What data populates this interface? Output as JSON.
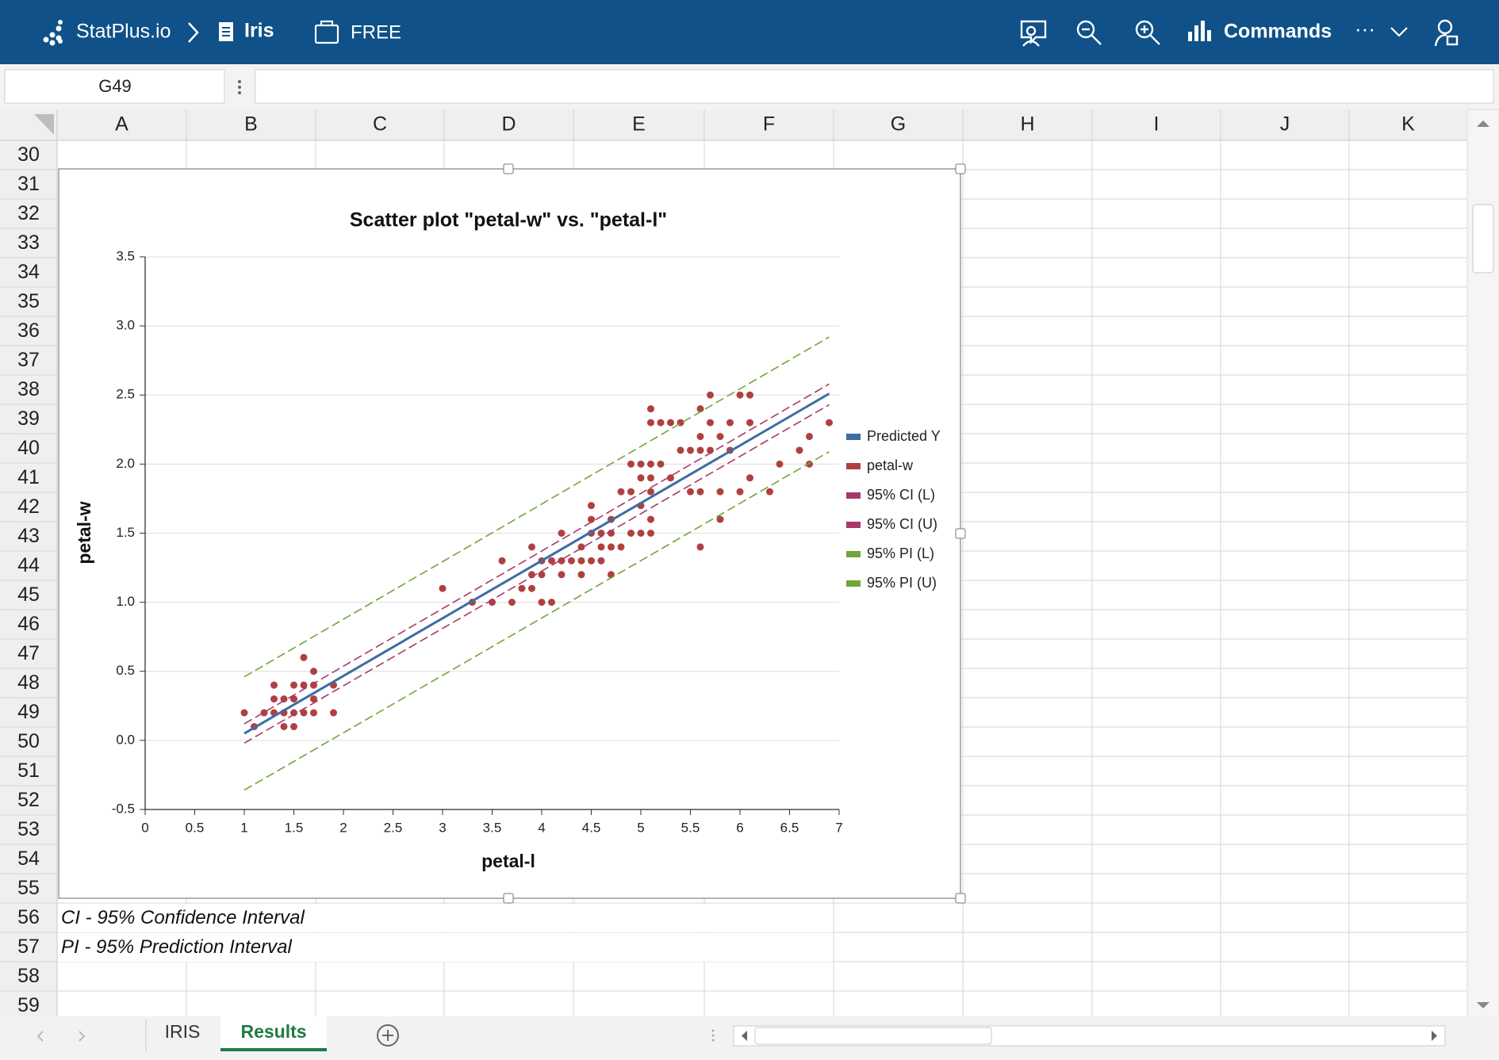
{
  "app": {
    "brand": "StatPlus.io",
    "workbook": "Iris",
    "plan": "FREE",
    "commands": "Commands",
    "more": "···",
    "name_box": "G49",
    "columns": [
      "A",
      "B",
      "C",
      "D",
      "E",
      "F",
      "G",
      "H",
      "I",
      "J",
      "K"
    ],
    "rows": [
      30,
      31,
      32,
      33,
      34,
      35,
      36,
      37,
      38,
      39,
      40,
      41,
      42,
      43,
      44,
      45,
      46,
      47,
      48,
      49,
      50,
      51,
      52,
      53,
      54,
      55,
      56,
      57,
      58,
      59
    ],
    "notes": [
      "CI - 95% Confidence Interval",
      "PI - 95% Prediction Interval"
    ],
    "tabs": [
      "IRIS",
      "Results"
    ]
  },
  "chart_data": {
    "type": "scatter",
    "title": "Scatter plot \"petal-w\" vs. \"petal-l\"",
    "x_label": "petal-l",
    "y_label": "petal-w",
    "xlim": [
      0,
      7
    ],
    "ylim": [
      -0.5,
      3.5
    ],
    "xticks": [
      0,
      0.5,
      1,
      1.5,
      2,
      2.5,
      3,
      3.5,
      4,
      4.5,
      5,
      5.5,
      6,
      6.5,
      7
    ],
    "yticks": [
      -0.5,
      {
        "value": 0,
        "label": "0.0"
      },
      0.5,
      {
        "value": 1,
        "label": "1.0"
      },
      1.5,
      {
        "value": 2,
        "label": "2.0"
      },
      2.5,
      {
        "value": 3,
        "label": "3.0"
      },
      3.5
    ],
    "grid": true,
    "legend": "right",
    "series": [
      {
        "name": "Predicted Y",
        "color": "#3e6ca6",
        "mode": "line",
        "dashed": false,
        "x": [
          1,
          6.9
        ],
        "values": [
          0.05,
          2.51
        ]
      },
      {
        "name": "petal-w",
        "color": "#b0403f",
        "mode": "markers",
        "x": [
          1,
          1.1,
          1.2,
          1.3,
          1.3,
          1.3,
          1.4,
          1.4,
          1.4,
          1.5,
          1.5,
          1.5,
          1.5,
          1.6,
          1.6,
          1.6,
          1.7,
          1.7,
          1.7,
          1.7,
          1.9,
          1.9,
          3,
          3.3,
          3.5,
          3.6,
          3.7,
          3.8,
          3.9,
          3.9,
          3.9,
          4,
          4,
          4,
          4.1,
          4.1,
          4.2,
          4.2,
          4.2,
          4.3,
          4.4,
          4.4,
          4.4,
          4.5,
          4.5,
          4.5,
          4.5,
          4.6,
          4.6,
          4.6,
          4.7,
          4.7,
          4.7,
          4.7,
          4.8,
          4.8,
          4.9,
          4.9,
          4.9,
          5,
          5,
          5,
          5,
          5.1,
          5.1,
          5.1,
          5.1,
          5.1,
          5.1,
          5.1,
          5.2,
          5.2,
          5.3,
          5.3,
          5.4,
          5.4,
          5.5,
          5.5,
          5.6,
          5.6,
          5.6,
          5.6,
          5.6,
          5.7,
          5.7,
          5.7,
          5.8,
          5.8,
          5.8,
          5.9,
          5.9,
          6,
          6,
          6.1,
          6.1,
          6.1,
          6.3,
          6.4,
          6.6,
          6.7,
          6.7,
          6.9
        ],
        "values": [
          0.2,
          0.1,
          0.2,
          0.2,
          0.3,
          0.4,
          0.1,
          0.2,
          0.3,
          0.1,
          0.2,
          0.3,
          0.4,
          0.2,
          0.4,
          0.6,
          0.2,
          0.3,
          0.4,
          0.5,
          0.2,
          0.4,
          1.1,
          1,
          1,
          1.3,
          1,
          1.1,
          1.1,
          1.2,
          1.4,
          1,
          1.2,
          1.3,
          1,
          1.3,
          1.2,
          1.3,
          1.5,
          1.3,
          1.2,
          1.3,
          1.4,
          1.3,
          1.5,
          1.6,
          1.7,
          1.3,
          1.4,
          1.5,
          1.2,
          1.4,
          1.5,
          1.6,
          1.4,
          1.8,
          1.5,
          1.8,
          2,
          1.5,
          1.7,
          1.9,
          2,
          1.5,
          1.6,
          1.8,
          1.9,
          2,
          2.3,
          2.4,
          2,
          2.3,
          1.9,
          2.3,
          2.1,
          2.3,
          1.8,
          2.1,
          1.4,
          1.8,
          2.1,
          2.2,
          2.4,
          2.1,
          2.3,
          2.5,
          1.6,
          1.8,
          2.2,
          2.1,
          2.3,
          1.8,
          2.5,
          1.9,
          2.3,
          2.5,
          1.8,
          2,
          2.1,
          2,
          2.2,
          2.3
        ]
      },
      {
        "name": "95% CI (L)",
        "color": "#a8386b",
        "mode": "line",
        "dashed": true,
        "x": [
          1,
          6.9
        ],
        "values": [
          -0.02,
          2.43
        ]
      },
      {
        "name": "95% CI (U)",
        "color": "#a8386b",
        "mode": "line",
        "dashed": true,
        "x": [
          1,
          6.9
        ],
        "values": [
          0.12,
          2.58
        ]
      },
      {
        "name": "95% PI (L)",
        "color": "#72a53a",
        "mode": "line",
        "dashed": true,
        "x": [
          1,
          6.9
        ],
        "values": [
          -0.36,
          2.09
        ]
      },
      {
        "name": "95% PI (U)",
        "color": "#72a53a",
        "mode": "line",
        "dashed": true,
        "x": [
          1,
          6.9
        ],
        "values": [
          0.46,
          2.92
        ]
      }
    ]
  }
}
